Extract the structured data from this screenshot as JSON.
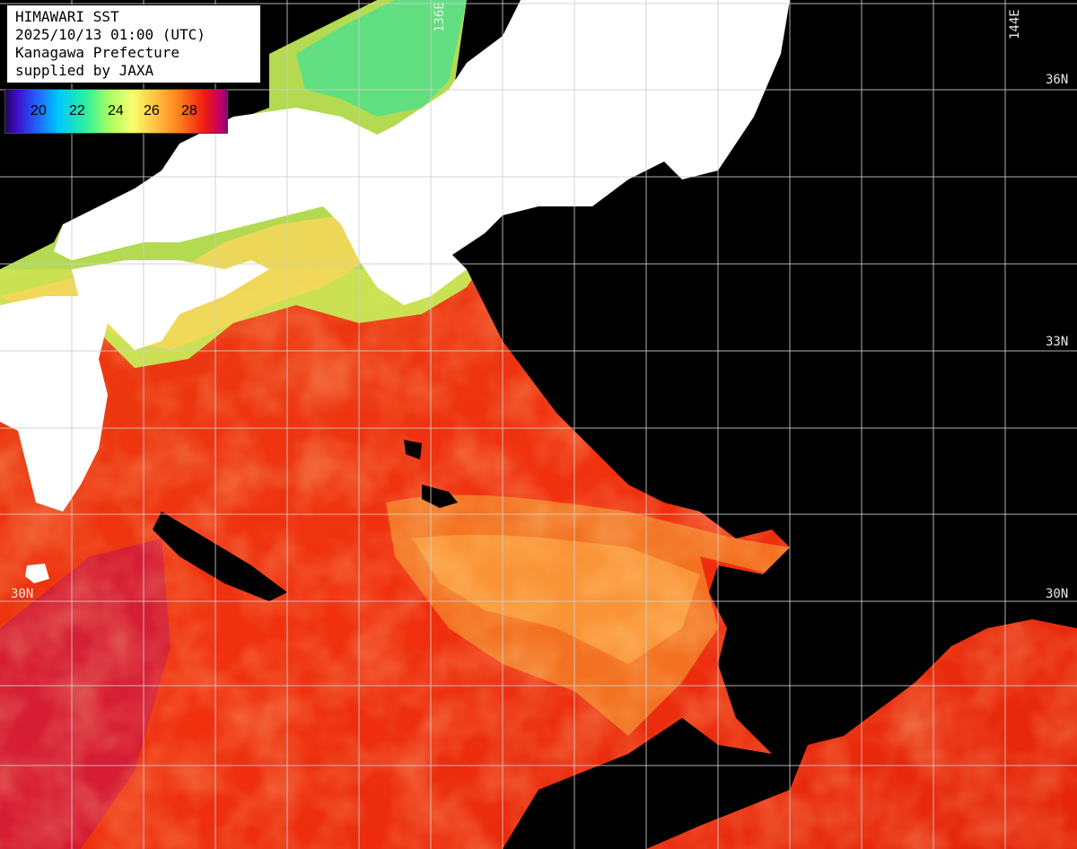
{
  "info": {
    "title": "HIMAWARI SST",
    "datetime": "2025/10/13 01:00 (UTC)",
    "region": "Kanagawa Prefecture",
    "credit": "supplied by JAXA"
  },
  "legend": {
    "ticks": [
      "20",
      "22",
      "24",
      "26",
      "28"
    ],
    "colors": [
      "#3d0cc4",
      "#2160ff",
      "#00c8ff",
      "#2bf0a0",
      "#a8ff60",
      "#f6ff70",
      "#ffc040",
      "#ff7a1a",
      "#f01a10",
      "#c0006a"
    ]
  },
  "grid": {
    "lon_labels": [
      "136E",
      "144E"
    ],
    "lat_labels_right": [
      "36N",
      "33N",
      "30N"
    ],
    "lat_labels_left": [
      "30N"
    ]
  },
  "colors": {
    "ocean_warm": "#e8280f",
    "land": "#ffffff",
    "cloud": "#000000",
    "grid": "#cfcfcf"
  }
}
